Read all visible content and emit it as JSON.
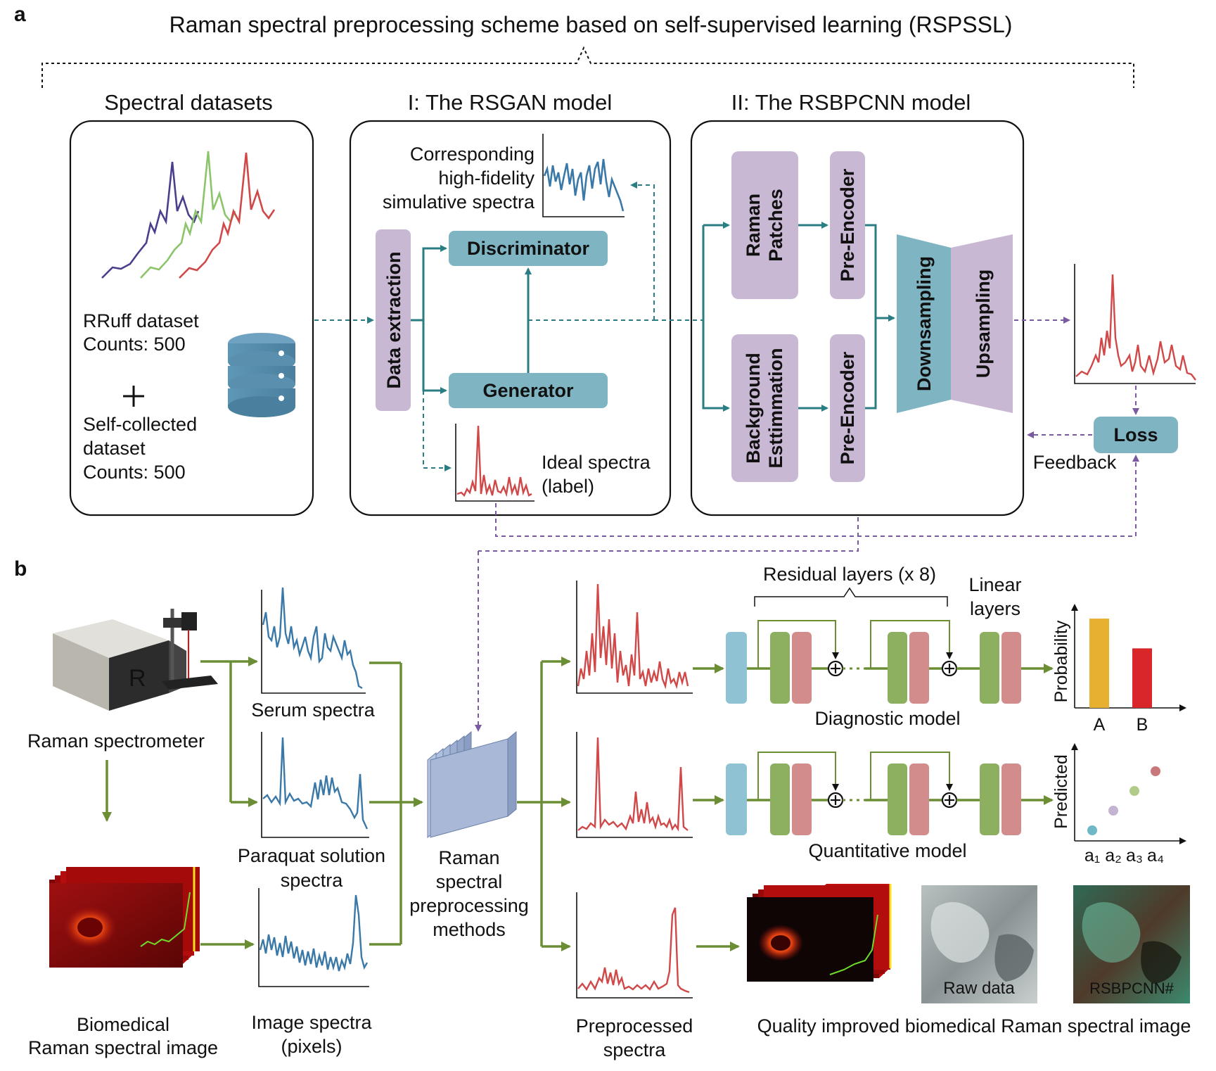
{
  "labels": {
    "panel_a": "a",
    "panel_b": "b",
    "title": "Raman spectral preprocessing scheme based on self-supervised learning (RSPSSL)",
    "spectral_datasets": "Spectral datasets",
    "rsgan_header": "I: The RSGAN model",
    "rsbpcnn_header": "II: The RSBPCNN model",
    "rruff_1": "RRuff dataset",
    "rruff_2": "Counts: 500",
    "plus": "+",
    "self_1": "Self-collected",
    "self_2": "dataset",
    "self_3": "Counts: 500",
    "corr_1": "Corresponding",
    "corr_2": "high-fidelity",
    "corr_3": "simulative spectra",
    "data_extraction": "Data extraction",
    "discriminator": "Discriminator",
    "generator": "Generator",
    "ideal_1": "Ideal spectra",
    "ideal_2": "(label)",
    "raman_patches_1": "Raman",
    "raman_patches_2": "Patches",
    "pre_encoder": "Pre-Encoder",
    "background_1": "Background",
    "background_2": "Esttimmation",
    "downsampling": "Downsampling",
    "upsampling": "Upsampling",
    "loss": "Loss",
    "feedback": "Feedback",
    "spectrometer": "Raman spectrometer",
    "serum": "Serum spectra",
    "paraquat_1": "Paraquat solution",
    "paraquat_2": "spectra",
    "image_spec_1": "Image spectra",
    "image_spec_2": "(pixels)",
    "bio_1": "Biomedical",
    "bio_2": "Raman spectral image",
    "methods_1": "Raman",
    "methods_2": "spectral",
    "methods_3": "preprocessing",
    "methods_4": "methods",
    "residual": "Residual layers (x 8)",
    "linear_1": "Linear",
    "linear_2": "layers",
    "diagnostic": "Diagnostic model",
    "quantitative": "Quantitative model",
    "probability": "Probability",
    "predicted": "Predicted",
    "cat_a": "A",
    "cat_b": "B",
    "a1": "a₁",
    "a2": "a₂",
    "a3": "a₃",
    "a4": "a₄",
    "preprocessed_1": "Preprocessed",
    "preprocessed_2": "spectra",
    "quality": "Quality improved biomedical Raman spectral image",
    "raw_data": "Raw data",
    "rsbpcnn_hash": "RSBPCNN#",
    "logo_r": "R"
  },
  "colors": {
    "teal_box": "#7fb5c3",
    "lavender_box": "#c9b8d4",
    "teal_line": "#2a7d82",
    "purple_dash": "#7a5aa0",
    "green_arrow": "#6b8e35",
    "spectrum_blue": "#3a78a8",
    "spectrum_red": "#d04848",
    "bar_a": "#e8b030",
    "bar_b": "#d8262a",
    "layer_blue": "#8fc3d3",
    "layer_green": "#8cb060",
    "layer_pink": "#d38c8c"
  },
  "icons": [
    "database-icon",
    "spectrometer-icon",
    "hyperspectral-cube-icon",
    "feature-maps-icon",
    "plus-icon",
    "residual-sum-icon"
  ],
  "chart_data": [
    {
      "type": "bar",
      "categories": [
        "A",
        "B"
      ],
      "values": [
        0.9,
        0.6
      ],
      "ylabel": "Probability"
    },
    {
      "type": "scatter",
      "x": [
        "a₁",
        "a₂",
        "a₃",
        "a₄"
      ],
      "y": [
        1,
        2,
        3,
        4
      ],
      "ylabel": "Predicted"
    }
  ]
}
